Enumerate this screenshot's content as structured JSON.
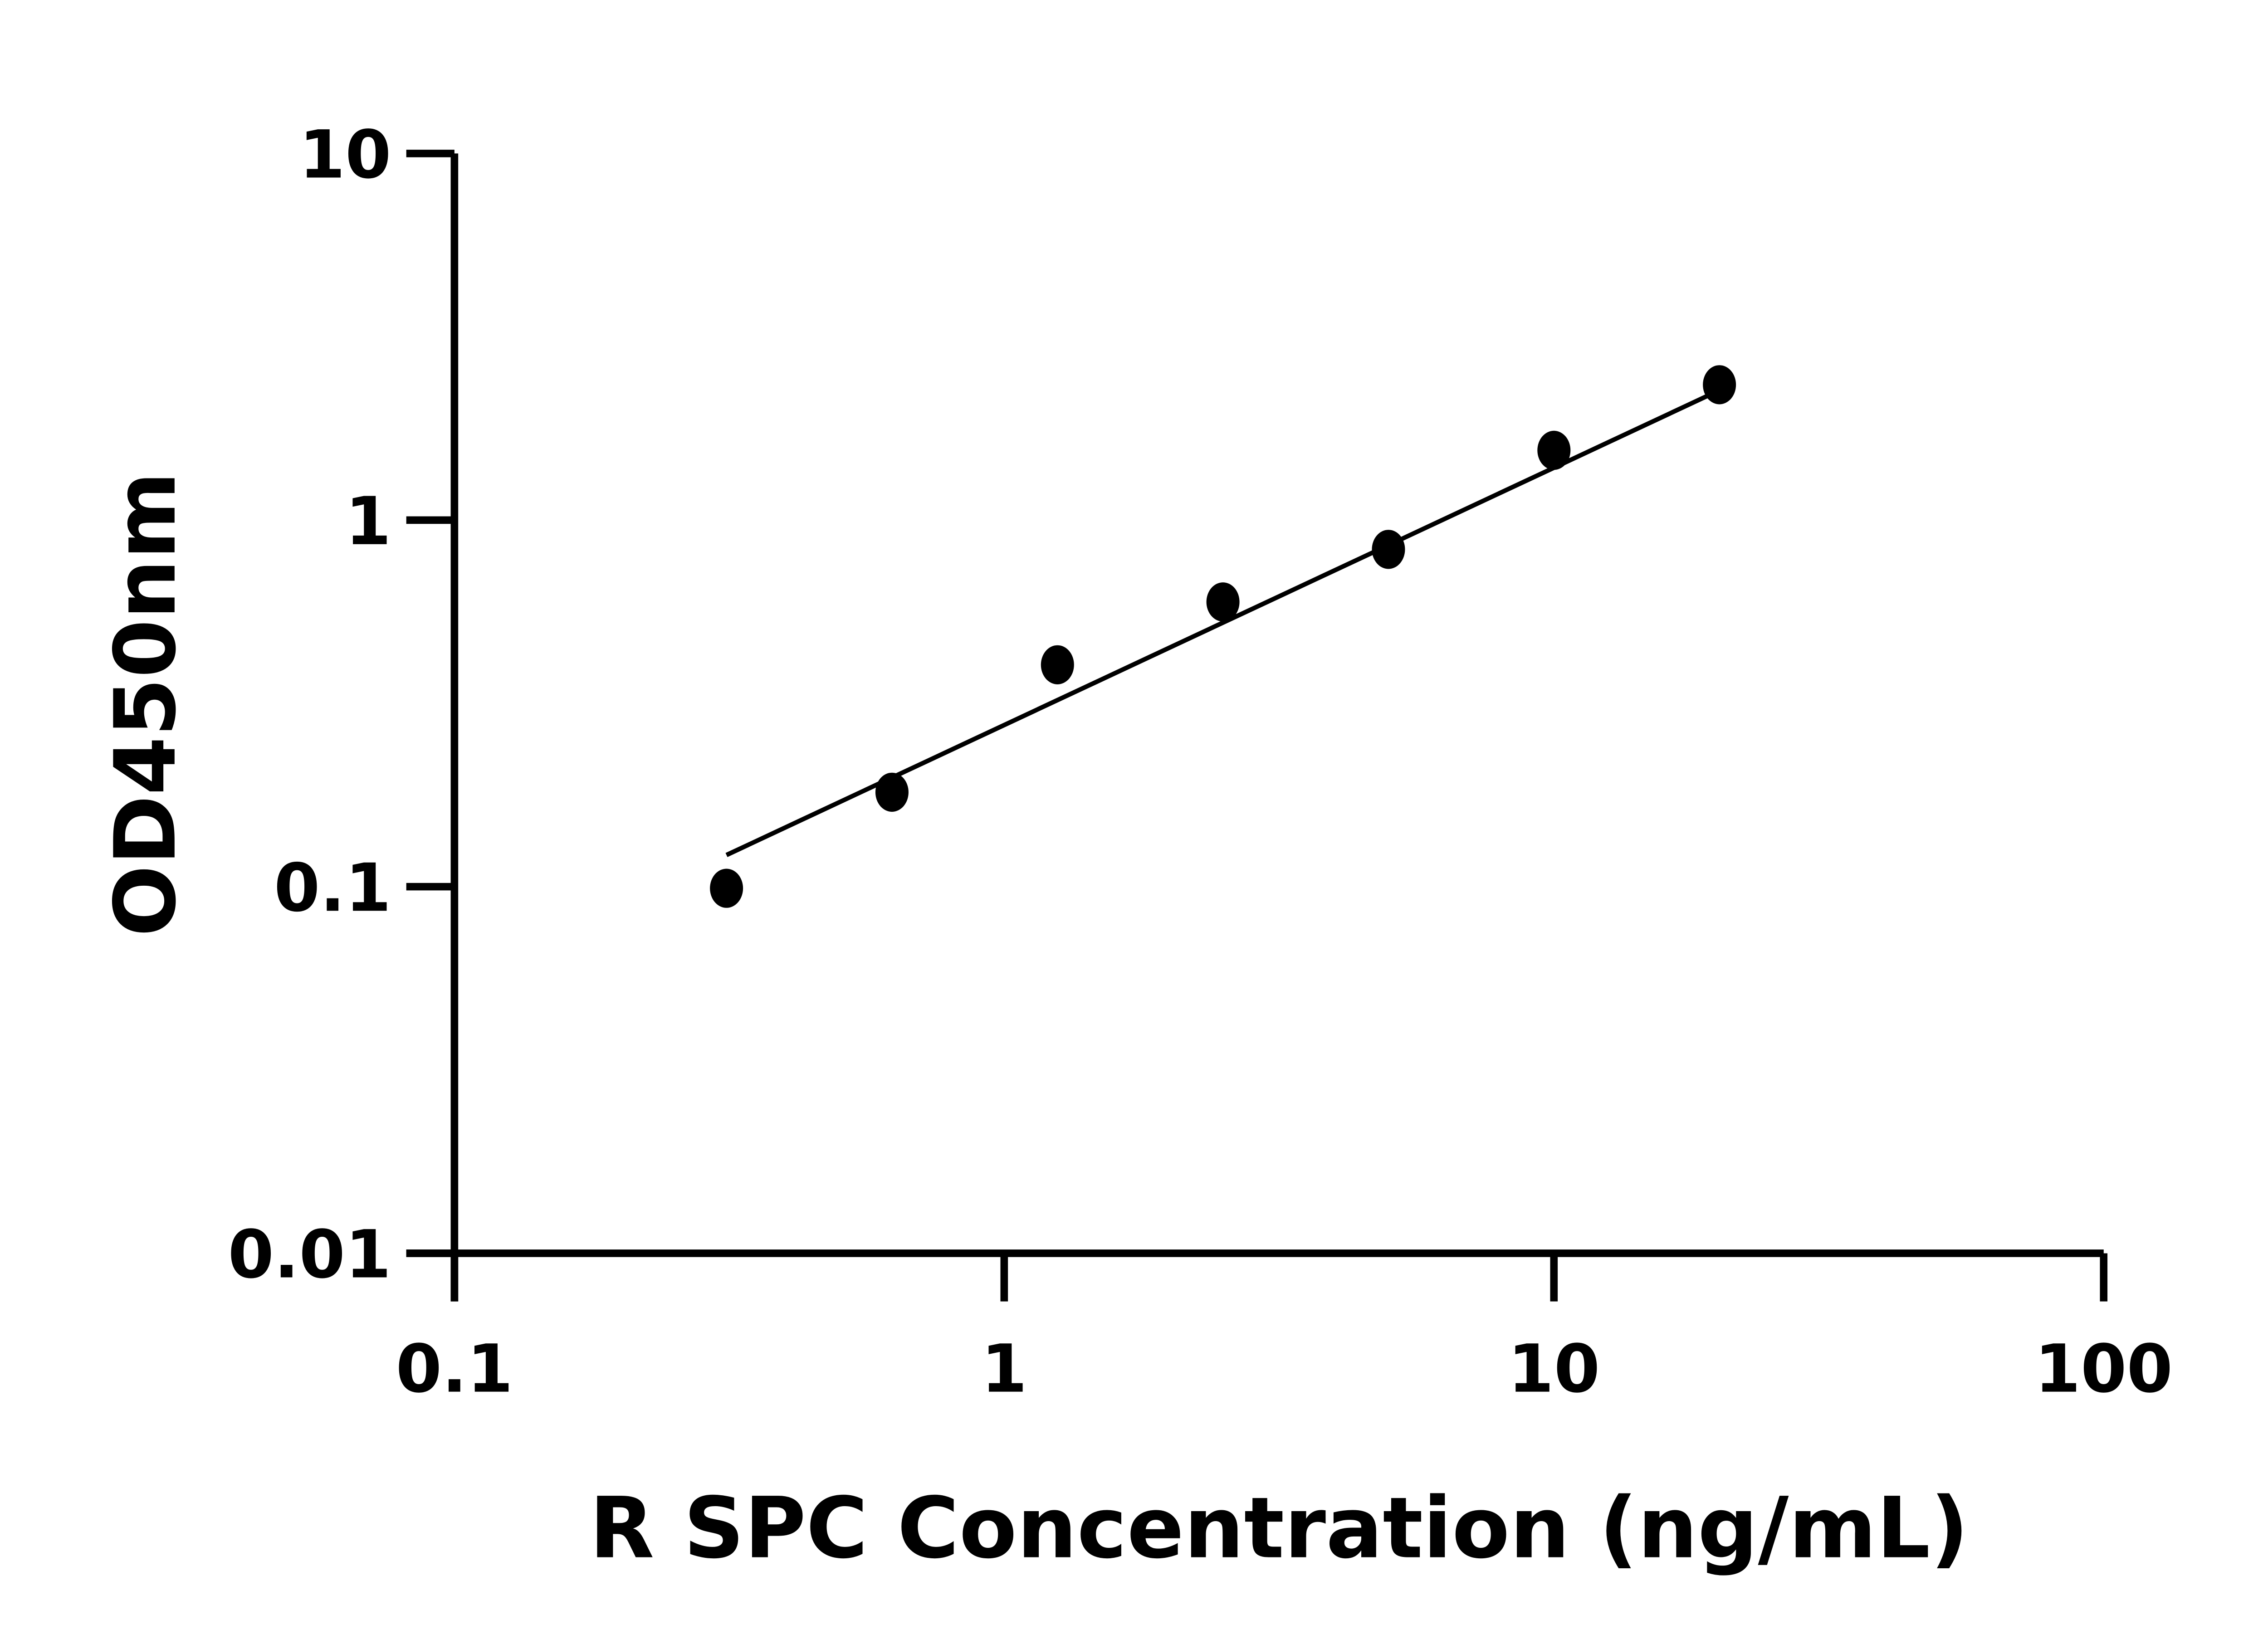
{
  "chart_data": {
    "type": "scatter",
    "title": "",
    "xlabel": "R SPC Concentration (ng/mL)",
    "ylabel": "OD450nm",
    "x_scale": "log",
    "y_scale": "log",
    "xlim": [
      0.1,
      100
    ],
    "ylim": [
      0.01,
      10
    ],
    "x_ticks": [
      "0.1",
      "1",
      "10",
      "100"
    ],
    "y_ticks": [
      "0.01",
      "0.1",
      "1",
      "10"
    ],
    "grid": false,
    "legend": "none",
    "marker_color": "#000000",
    "series": [
      {
        "x": [
          0.3125,
          0.625,
          1.25,
          2.5,
          5,
          10,
          20
        ],
        "y": [
          0.099,
          0.181,
          0.403,
          0.598,
          0.832,
          1.55,
          2.34
        ]
      }
    ],
    "fit_line": {
      "x": [
        0.3125,
        20
      ],
      "y": [
        0.122,
        2.26
      ]
    }
  }
}
